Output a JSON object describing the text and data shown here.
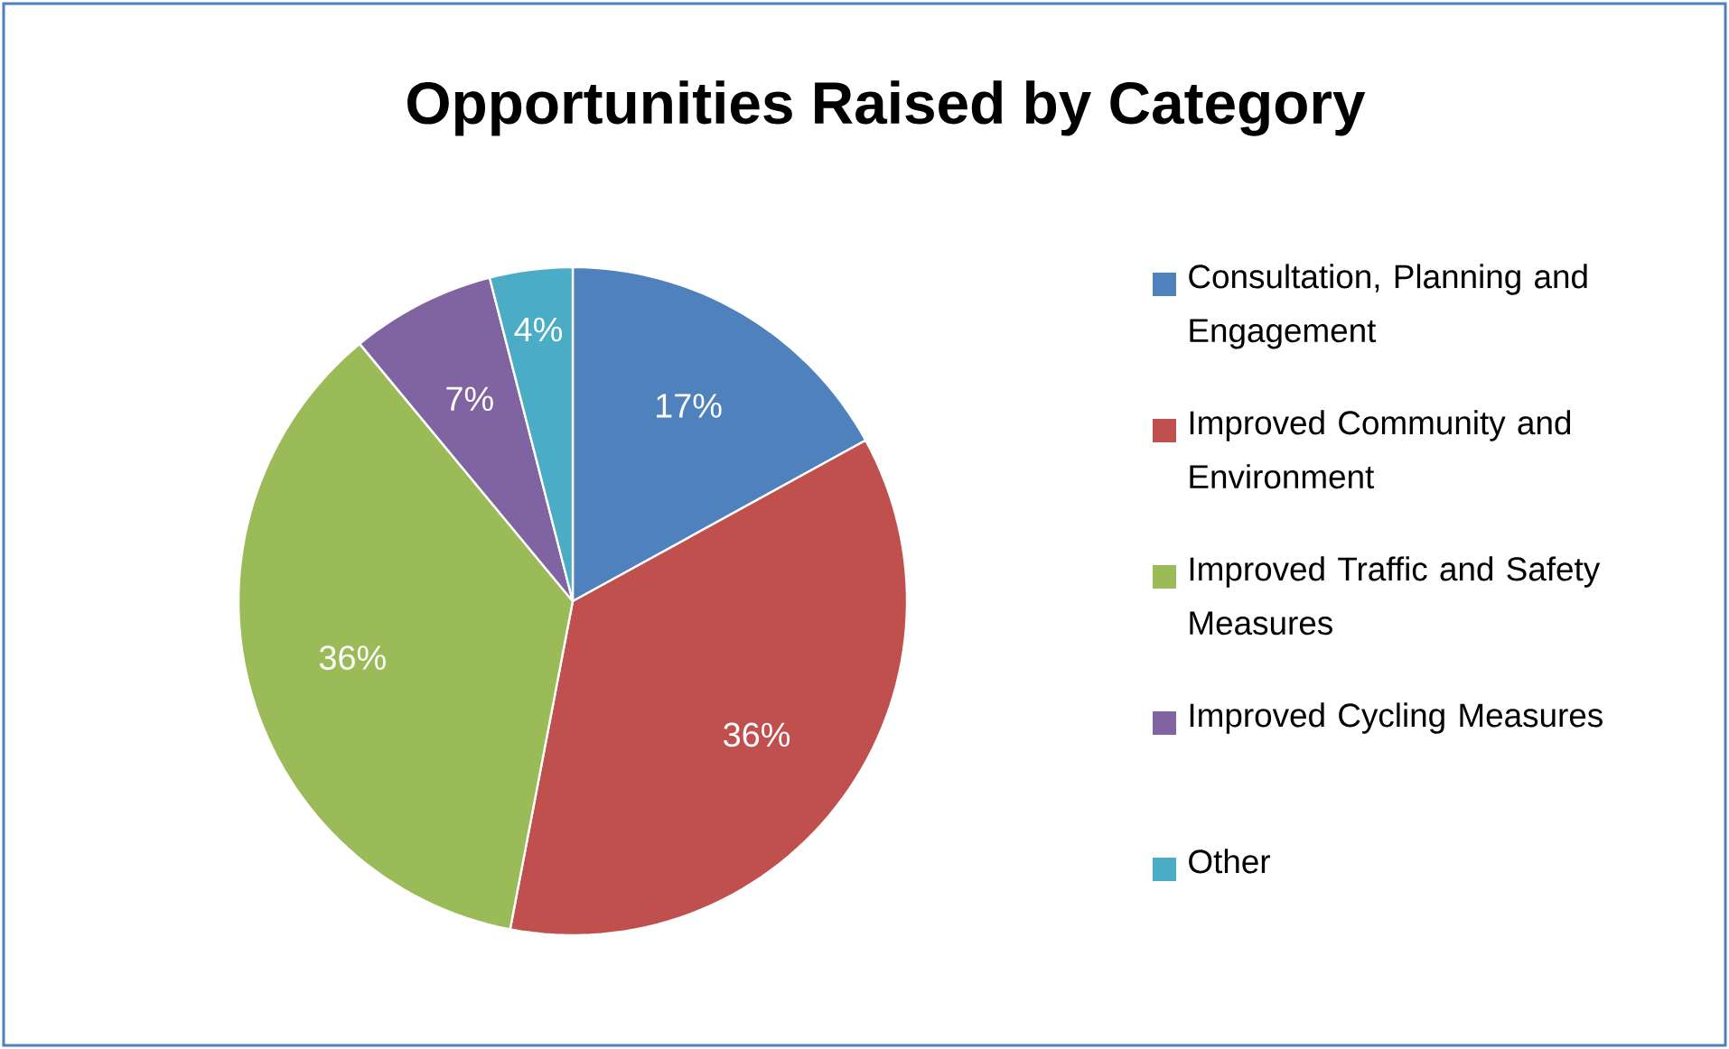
{
  "chart_data": {
    "type": "pie",
    "title": "Opportunities Raised by Category",
    "categories": [
      "Consultation, Planning and Engagement",
      "Improved Community and Environment",
      "Improved Traffic and Safety Measures",
      "Improved Cycling Measures",
      "Other"
    ],
    "values": [
      17,
      36,
      36,
      7,
      4
    ],
    "value_labels": [
      "17%",
      "36%",
      "36%",
      "7%",
      "4%"
    ],
    "colors": [
      "#4f81bd",
      "#c0504d",
      "#9bbb59",
      "#8064a2",
      "#4bacc6"
    ],
    "legend": "right"
  }
}
